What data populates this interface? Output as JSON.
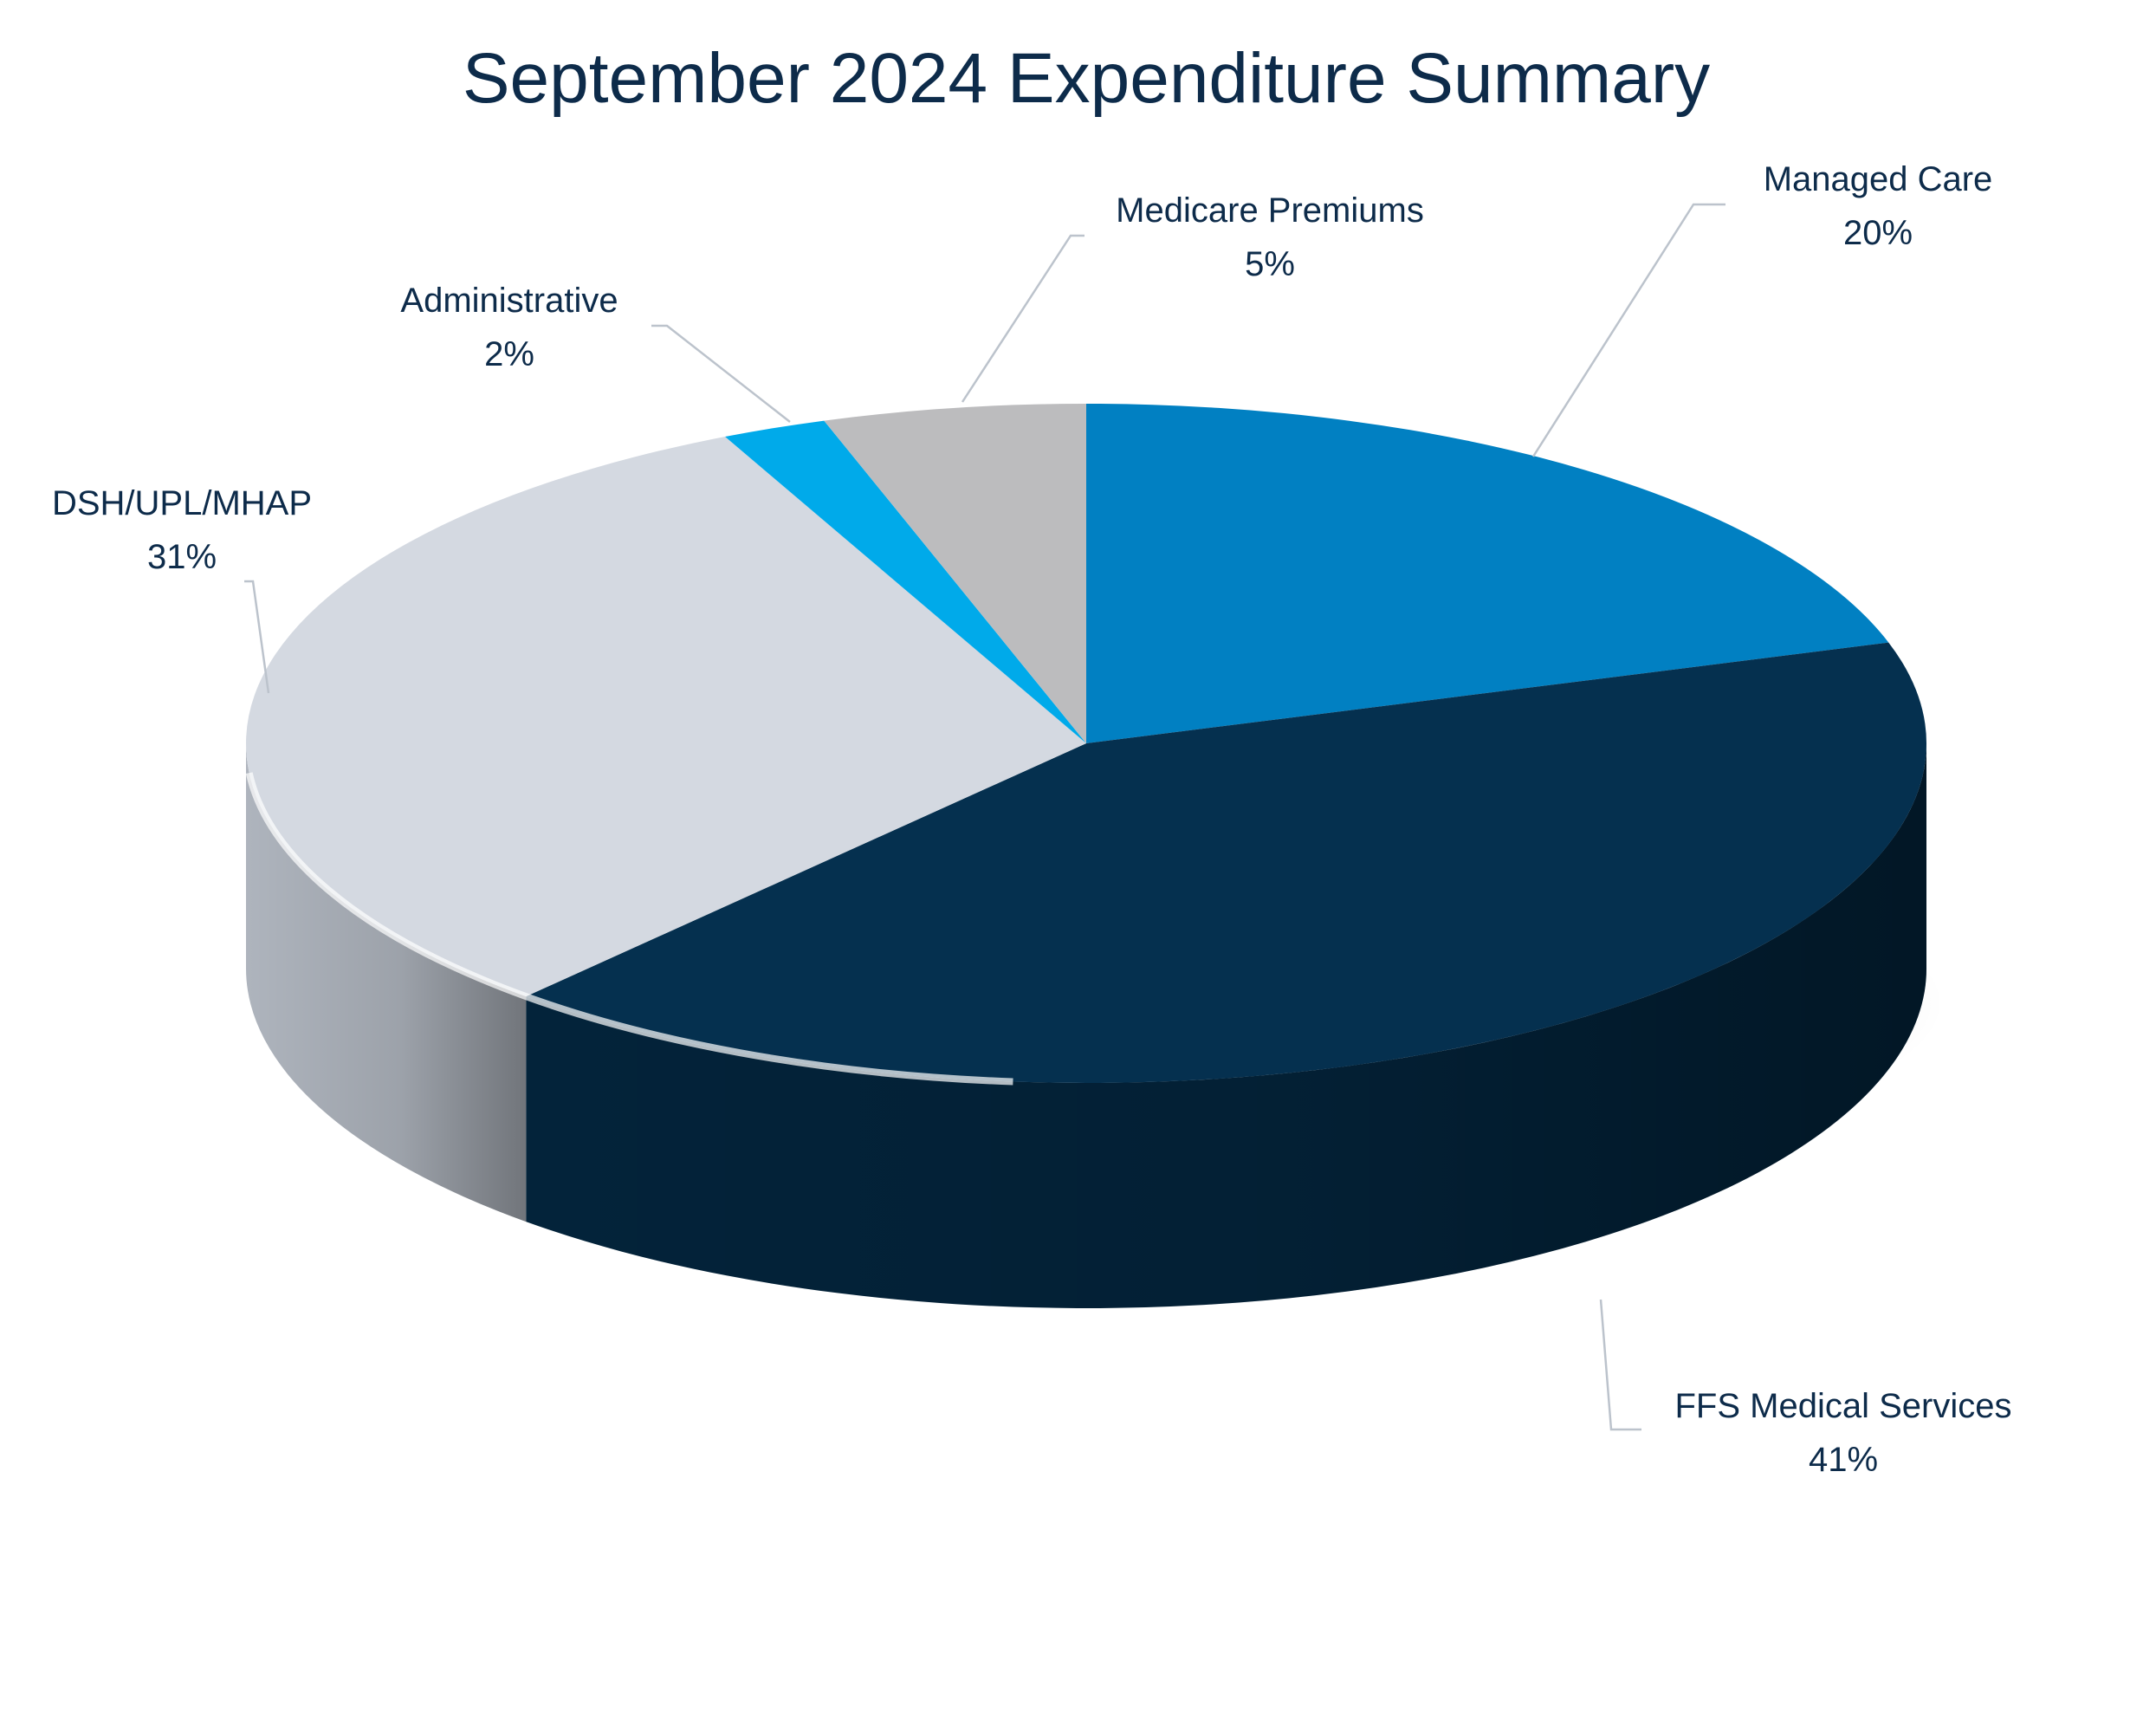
{
  "chart_data": {
    "type": "pie",
    "title": "September 2024 Expenditure Summary",
    "categories": [
      "Managed Care",
      "FFS Medical Services",
      "DSH/UPL/MHAP",
      "Administrative",
      "Medicare Premiums"
    ],
    "values": [
      20,
      41,
      31,
      2,
      5
    ],
    "value_labels": [
      "20%",
      "41%",
      "31%",
      "2%",
      "5%"
    ],
    "colors": [
      "#0180c2",
      "#05304f",
      "#d4d9e1",
      "#00aaea",
      "#bcbcbe"
    ],
    "side_colors": [
      "#016aa2",
      "#03233a",
      "#aeb4bd",
      "#008fc4",
      "#9d9da0"
    ],
    "legend": "none",
    "data_labels": "outside with leader lines"
  }
}
